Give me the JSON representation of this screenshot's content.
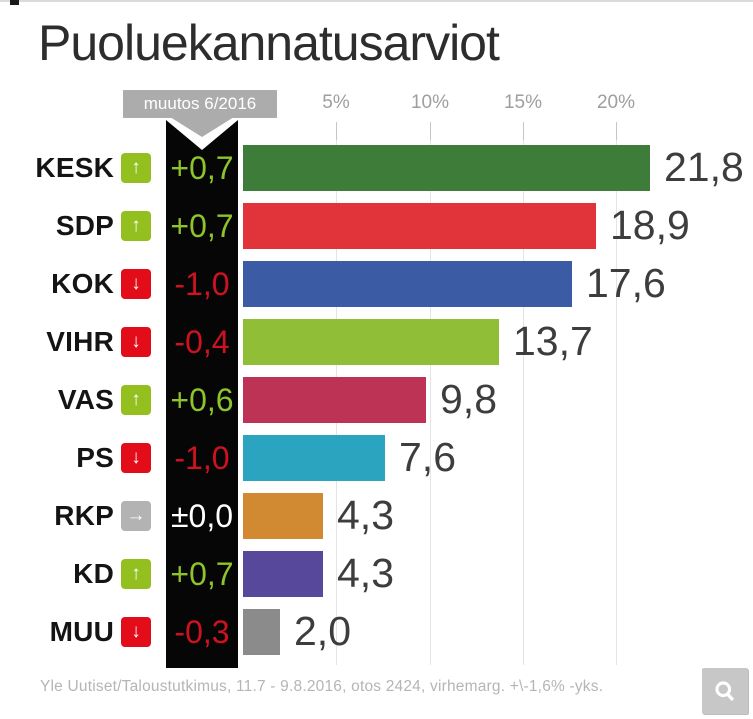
{
  "title": "Puoluekannatusarviot",
  "header": {
    "badge_label": "muutos 6/2016"
  },
  "chart_data": {
    "type": "bar",
    "orientation": "horizontal",
    "title": "Puoluekannatusarviot",
    "categories": [
      "KESK",
      "SDP",
      "KOK",
      "VIHR",
      "VAS",
      "PS",
      "RKP",
      "KD",
      "MUU"
    ],
    "values": [
      21.8,
      18.9,
      17.6,
      13.7,
      9.8,
      7.6,
      4.3,
      4.3,
      2.0
    ],
    "value_labels": [
      "21,8",
      "18,9",
      "17,6",
      "13,7",
      "9,8",
      "7,6",
      "4,3",
      "4,3",
      "2,0"
    ],
    "changes": {
      "labels": [
        "+0,7",
        "+0,7",
        "-1,0",
        "-0,4",
        "+0,6",
        "-1,0",
        "±0,0",
        "+0,7",
        "-0,3"
      ],
      "directions": [
        "up",
        "up",
        "down",
        "down",
        "up",
        "down",
        "flat",
        "up",
        "down"
      ]
    },
    "bar_colors": [
      "#3e7c39",
      "#e1343a",
      "#3b5ba5",
      "#90bf37",
      "#bd3355",
      "#2ba4bf",
      "#d18a31",
      "#58489b",
      "#8b8b8b"
    ],
    "x_ticks": [
      5,
      10,
      15,
      20
    ],
    "x_tick_labels": [
      "5%",
      "10%",
      "15%",
      "20%"
    ],
    "xlim": [
      0,
      22
    ],
    "grid": true,
    "legend": "none"
  },
  "style": {
    "change_text_colors": {
      "up": "#8ec32a",
      "down": "#cf1120",
      "flat": "#ffffff"
    },
    "trend_badge_colors": {
      "up": "#93c01f",
      "down": "#e30d1a",
      "flat": "#b3b3b3"
    },
    "trend_arrows": {
      "up": "↑",
      "down": "↓",
      "flat": "→"
    },
    "change_column_background": "#060606"
  },
  "footer": {
    "source": "Yle Uutiset/Taloustutkimus, 11.7 - 9.8.2016, otos 2424, virhemarg. +\\-1,6% -yks."
  },
  "zoom_button": {
    "icon": "magnifier"
  }
}
